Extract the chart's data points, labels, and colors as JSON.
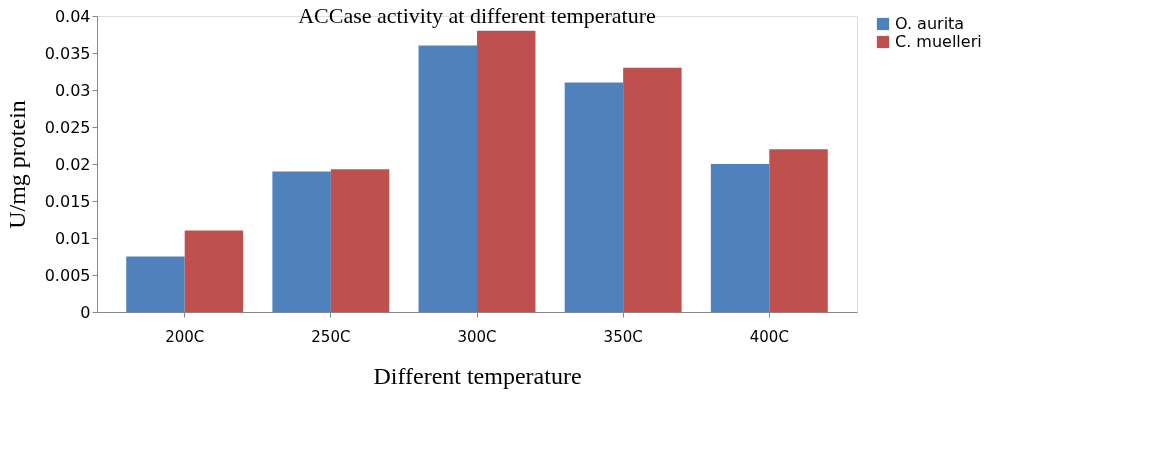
{
  "chart_data": {
    "type": "bar",
    "title": "ACCase activity at different temperature",
    "xlabel": "Different temperature",
    "ylabel": "U/mg protein",
    "categories": [
      "200C",
      "250C",
      "300C",
      "350C",
      "400C"
    ],
    "series": [
      {
        "name": "O. aurita",
        "color": "#4f81bd",
        "values": [
          0.0075,
          0.019,
          0.036,
          0.031,
          0.02
        ]
      },
      {
        "name": "C. muelleri",
        "color": "#c0504d",
        "values": [
          0.011,
          0.0193,
          0.038,
          0.033,
          0.022
        ]
      }
    ],
    "ylim": [
      0,
      0.04
    ],
    "yticks": [
      0,
      0.005,
      0.01,
      0.015,
      0.02,
      0.025,
      0.03,
      0.035,
      0.04
    ],
    "grid": false,
    "legend": "right"
  }
}
